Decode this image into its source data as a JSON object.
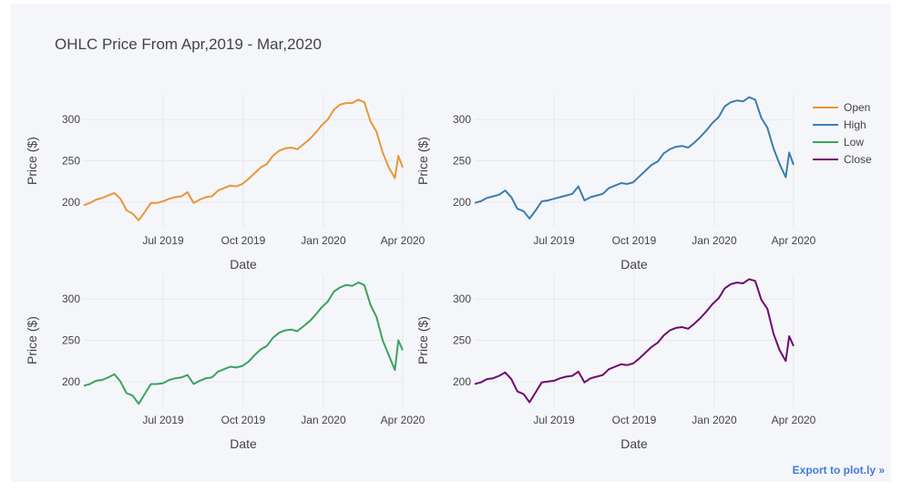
{
  "title": "OHLC Price From Apr,2019 - Mar,2020",
  "export_label": "Export to plot.ly »",
  "chart_data": {
    "type": "line",
    "x_axis": {
      "label": "Date",
      "range": [
        "2019-04-01",
        "2020-04-01"
      ],
      "ticks": [
        {
          "value": "2019-07-01",
          "label": "Jul 2019"
        },
        {
          "value": "2019-10-01",
          "label": "Oct 2019"
        },
        {
          "value": "2020-01-01",
          "label": "Jan 2020"
        },
        {
          "value": "2020-04-01",
          "label": "Apr 2020"
        }
      ]
    },
    "y_axis": {
      "label": "Price ($)",
      "range": [
        170,
        330
      ],
      "ticks": [
        200,
        250,
        300
      ]
    },
    "grid": true,
    "legend_position": "top-right",
    "series": [
      {
        "name": "Open",
        "color": "#e8973a",
        "points": [
          [
            "2019-04-01",
            196
          ],
          [
            "2019-04-08",
            199
          ],
          [
            "2019-04-15",
            203
          ],
          [
            "2019-04-22",
            205
          ],
          [
            "2019-04-29",
            208
          ],
          [
            "2019-05-06",
            211
          ],
          [
            "2019-05-13",
            204
          ],
          [
            "2019-05-20",
            190
          ],
          [
            "2019-05-27",
            186
          ],
          [
            "2019-06-03",
            178
          ],
          [
            "2019-06-10",
            188
          ],
          [
            "2019-06-17",
            199
          ],
          [
            "2019-06-24",
            199
          ],
          [
            "2019-07-01",
            201
          ],
          [
            "2019-07-08",
            204
          ],
          [
            "2019-07-15",
            206
          ],
          [
            "2019-07-22",
            207
          ],
          [
            "2019-07-29",
            212
          ],
          [
            "2019-08-05",
            199
          ],
          [
            "2019-08-12",
            203
          ],
          [
            "2019-08-19",
            206
          ],
          [
            "2019-08-26",
            207
          ],
          [
            "2019-09-02",
            214
          ],
          [
            "2019-09-09",
            217
          ],
          [
            "2019-09-16",
            220
          ],
          [
            "2019-09-23",
            219
          ],
          [
            "2019-09-30",
            222
          ],
          [
            "2019-10-07",
            228
          ],
          [
            "2019-10-14",
            235
          ],
          [
            "2019-10-21",
            242
          ],
          [
            "2019-10-28",
            246
          ],
          [
            "2019-11-04",
            256
          ],
          [
            "2019-11-11",
            262
          ],
          [
            "2019-11-18",
            265
          ],
          [
            "2019-11-25",
            266
          ],
          [
            "2019-12-02",
            264
          ],
          [
            "2019-12-09",
            270
          ],
          [
            "2019-12-16",
            276
          ],
          [
            "2019-12-23",
            284
          ],
          [
            "2019-12-30",
            293
          ],
          [
            "2020-01-06",
            300
          ],
          [
            "2020-01-13",
            312
          ],
          [
            "2020-01-20",
            318
          ],
          [
            "2020-01-27",
            320
          ],
          [
            "2020-02-03",
            320
          ],
          [
            "2020-02-10",
            324
          ],
          [
            "2020-02-17",
            321
          ],
          [
            "2020-02-24",
            298
          ],
          [
            "2020-03-02",
            285
          ],
          [
            "2020-03-09",
            260
          ],
          [
            "2020-03-16",
            242
          ],
          [
            "2020-03-23",
            229
          ],
          [
            "2020-03-27",
            256
          ],
          [
            "2020-04-01",
            242
          ]
        ]
      },
      {
        "name": "High",
        "color": "#3b7db1",
        "points": [
          [
            "2019-04-01",
            199
          ],
          [
            "2019-04-08",
            201
          ],
          [
            "2019-04-15",
            205
          ],
          [
            "2019-04-22",
            207
          ],
          [
            "2019-04-29",
            209
          ],
          [
            "2019-05-06",
            214
          ],
          [
            "2019-05-13",
            206
          ],
          [
            "2019-05-20",
            192
          ],
          [
            "2019-05-27",
            189
          ],
          [
            "2019-06-03",
            180
          ],
          [
            "2019-06-10",
            190
          ],
          [
            "2019-06-17",
            201
          ],
          [
            "2019-06-24",
            202
          ],
          [
            "2019-07-01",
            204
          ],
          [
            "2019-07-08",
            206
          ],
          [
            "2019-07-15",
            208
          ],
          [
            "2019-07-22",
            210
          ],
          [
            "2019-07-29",
            219
          ],
          [
            "2019-08-05",
            202
          ],
          [
            "2019-08-12",
            206
          ],
          [
            "2019-08-19",
            208
          ],
          [
            "2019-08-26",
            210
          ],
          [
            "2019-09-02",
            217
          ],
          [
            "2019-09-09",
            220
          ],
          [
            "2019-09-16",
            223
          ],
          [
            "2019-09-23",
            222
          ],
          [
            "2019-09-30",
            224
          ],
          [
            "2019-10-07",
            231
          ],
          [
            "2019-10-14",
            238
          ],
          [
            "2019-10-21",
            245
          ],
          [
            "2019-10-28",
            249
          ],
          [
            "2019-11-04",
            259
          ],
          [
            "2019-11-11",
            264
          ],
          [
            "2019-11-18",
            267
          ],
          [
            "2019-11-25",
            268
          ],
          [
            "2019-12-02",
            266
          ],
          [
            "2019-12-09",
            272
          ],
          [
            "2019-12-16",
            279
          ],
          [
            "2019-12-23",
            287
          ],
          [
            "2019-12-30",
            296
          ],
          [
            "2020-01-06",
            303
          ],
          [
            "2020-01-13",
            316
          ],
          [
            "2020-01-20",
            321
          ],
          [
            "2020-01-27",
            323
          ],
          [
            "2020-02-03",
            322
          ],
          [
            "2020-02-10",
            327
          ],
          [
            "2020-02-17",
            324
          ],
          [
            "2020-02-24",
            302
          ],
          [
            "2020-03-02",
            290
          ],
          [
            "2020-03-09",
            265
          ],
          [
            "2020-03-16",
            246
          ],
          [
            "2020-03-23",
            230
          ],
          [
            "2020-03-27",
            260
          ],
          [
            "2020-04-01",
            245
          ]
        ]
      },
      {
        "name": "Low",
        "color": "#3aa35f",
        "points": [
          [
            "2019-04-01",
            195
          ],
          [
            "2019-04-08",
            197
          ],
          [
            "2019-04-15",
            201
          ],
          [
            "2019-04-22",
            202
          ],
          [
            "2019-04-29",
            205
          ],
          [
            "2019-05-06",
            209
          ],
          [
            "2019-05-13",
            200
          ],
          [
            "2019-05-20",
            186
          ],
          [
            "2019-05-27",
            183
          ],
          [
            "2019-06-03",
            173
          ],
          [
            "2019-06-10",
            185
          ],
          [
            "2019-06-17",
            197
          ],
          [
            "2019-06-24",
            197
          ],
          [
            "2019-07-01",
            198
          ],
          [
            "2019-07-08",
            202
          ],
          [
            "2019-07-15",
            204
          ],
          [
            "2019-07-22",
            205
          ],
          [
            "2019-07-29",
            208
          ],
          [
            "2019-08-05",
            197
          ],
          [
            "2019-08-12",
            201
          ],
          [
            "2019-08-19",
            204
          ],
          [
            "2019-08-26",
            205
          ],
          [
            "2019-09-02",
            212
          ],
          [
            "2019-09-09",
            215
          ],
          [
            "2019-09-16",
            218
          ],
          [
            "2019-09-23",
            217
          ],
          [
            "2019-09-30",
            219
          ],
          [
            "2019-10-07",
            224
          ],
          [
            "2019-10-14",
            232
          ],
          [
            "2019-10-21",
            239
          ],
          [
            "2019-10-28",
            243
          ],
          [
            "2019-11-04",
            253
          ],
          [
            "2019-11-11",
            259
          ],
          [
            "2019-11-18",
            262
          ],
          [
            "2019-11-25",
            263
          ],
          [
            "2019-12-02",
            261
          ],
          [
            "2019-12-09",
            267
          ],
          [
            "2019-12-16",
            273
          ],
          [
            "2019-12-23",
            281
          ],
          [
            "2019-12-30",
            290
          ],
          [
            "2020-01-06",
            297
          ],
          [
            "2020-01-13",
            309
          ],
          [
            "2020-01-20",
            314
          ],
          [
            "2020-01-27",
            317
          ],
          [
            "2020-02-03",
            316
          ],
          [
            "2020-02-10",
            320
          ],
          [
            "2020-02-17",
            317
          ],
          [
            "2020-02-24",
            293
          ],
          [
            "2020-03-02",
            278
          ],
          [
            "2020-03-09",
            250
          ],
          [
            "2020-03-16",
            232
          ],
          [
            "2020-03-23",
            214
          ],
          [
            "2020-03-27",
            250
          ],
          [
            "2020-04-01",
            238
          ]
        ]
      },
      {
        "name": "Close",
        "color": "#6f0b6f",
        "points": [
          [
            "2019-04-01",
            197
          ],
          [
            "2019-04-08",
            199
          ],
          [
            "2019-04-15",
            203
          ],
          [
            "2019-04-22",
            204
          ],
          [
            "2019-04-29",
            207
          ],
          [
            "2019-05-06",
            211
          ],
          [
            "2019-05-13",
            203
          ],
          [
            "2019-05-20",
            188
          ],
          [
            "2019-05-27",
            185
          ],
          [
            "2019-06-03",
            175
          ],
          [
            "2019-06-10",
            187
          ],
          [
            "2019-06-17",
            199
          ],
          [
            "2019-06-24",
            200
          ],
          [
            "2019-07-01",
            201
          ],
          [
            "2019-07-08",
            204
          ],
          [
            "2019-07-15",
            206
          ],
          [
            "2019-07-22",
            207
          ],
          [
            "2019-07-29",
            212
          ],
          [
            "2019-08-05",
            199
          ],
          [
            "2019-08-12",
            204
          ],
          [
            "2019-08-19",
            206
          ],
          [
            "2019-08-26",
            208
          ],
          [
            "2019-09-02",
            215
          ],
          [
            "2019-09-09",
            218
          ],
          [
            "2019-09-16",
            221
          ],
          [
            "2019-09-23",
            220
          ],
          [
            "2019-09-30",
            222
          ],
          [
            "2019-10-07",
            228
          ],
          [
            "2019-10-14",
            235
          ],
          [
            "2019-10-21",
            242
          ],
          [
            "2019-10-28",
            247
          ],
          [
            "2019-11-04",
            256
          ],
          [
            "2019-11-11",
            262
          ],
          [
            "2019-11-18",
            265
          ],
          [
            "2019-11-25",
            266
          ],
          [
            "2019-12-02",
            264
          ],
          [
            "2019-12-09",
            270
          ],
          [
            "2019-12-16",
            277
          ],
          [
            "2019-12-23",
            285
          ],
          [
            "2019-12-30",
            294
          ],
          [
            "2020-01-06",
            301
          ],
          [
            "2020-01-13",
            313
          ],
          [
            "2020-01-20",
            318
          ],
          [
            "2020-01-27",
            320
          ],
          [
            "2020-02-03",
            319
          ],
          [
            "2020-02-10",
            324
          ],
          [
            "2020-02-17",
            322
          ],
          [
            "2020-02-24",
            299
          ],
          [
            "2020-03-02",
            288
          ],
          [
            "2020-03-09",
            258
          ],
          [
            "2020-03-16",
            238
          ],
          [
            "2020-03-23",
            225
          ],
          [
            "2020-03-27",
            255
          ],
          [
            "2020-04-01",
            243
          ]
        ]
      }
    ]
  }
}
